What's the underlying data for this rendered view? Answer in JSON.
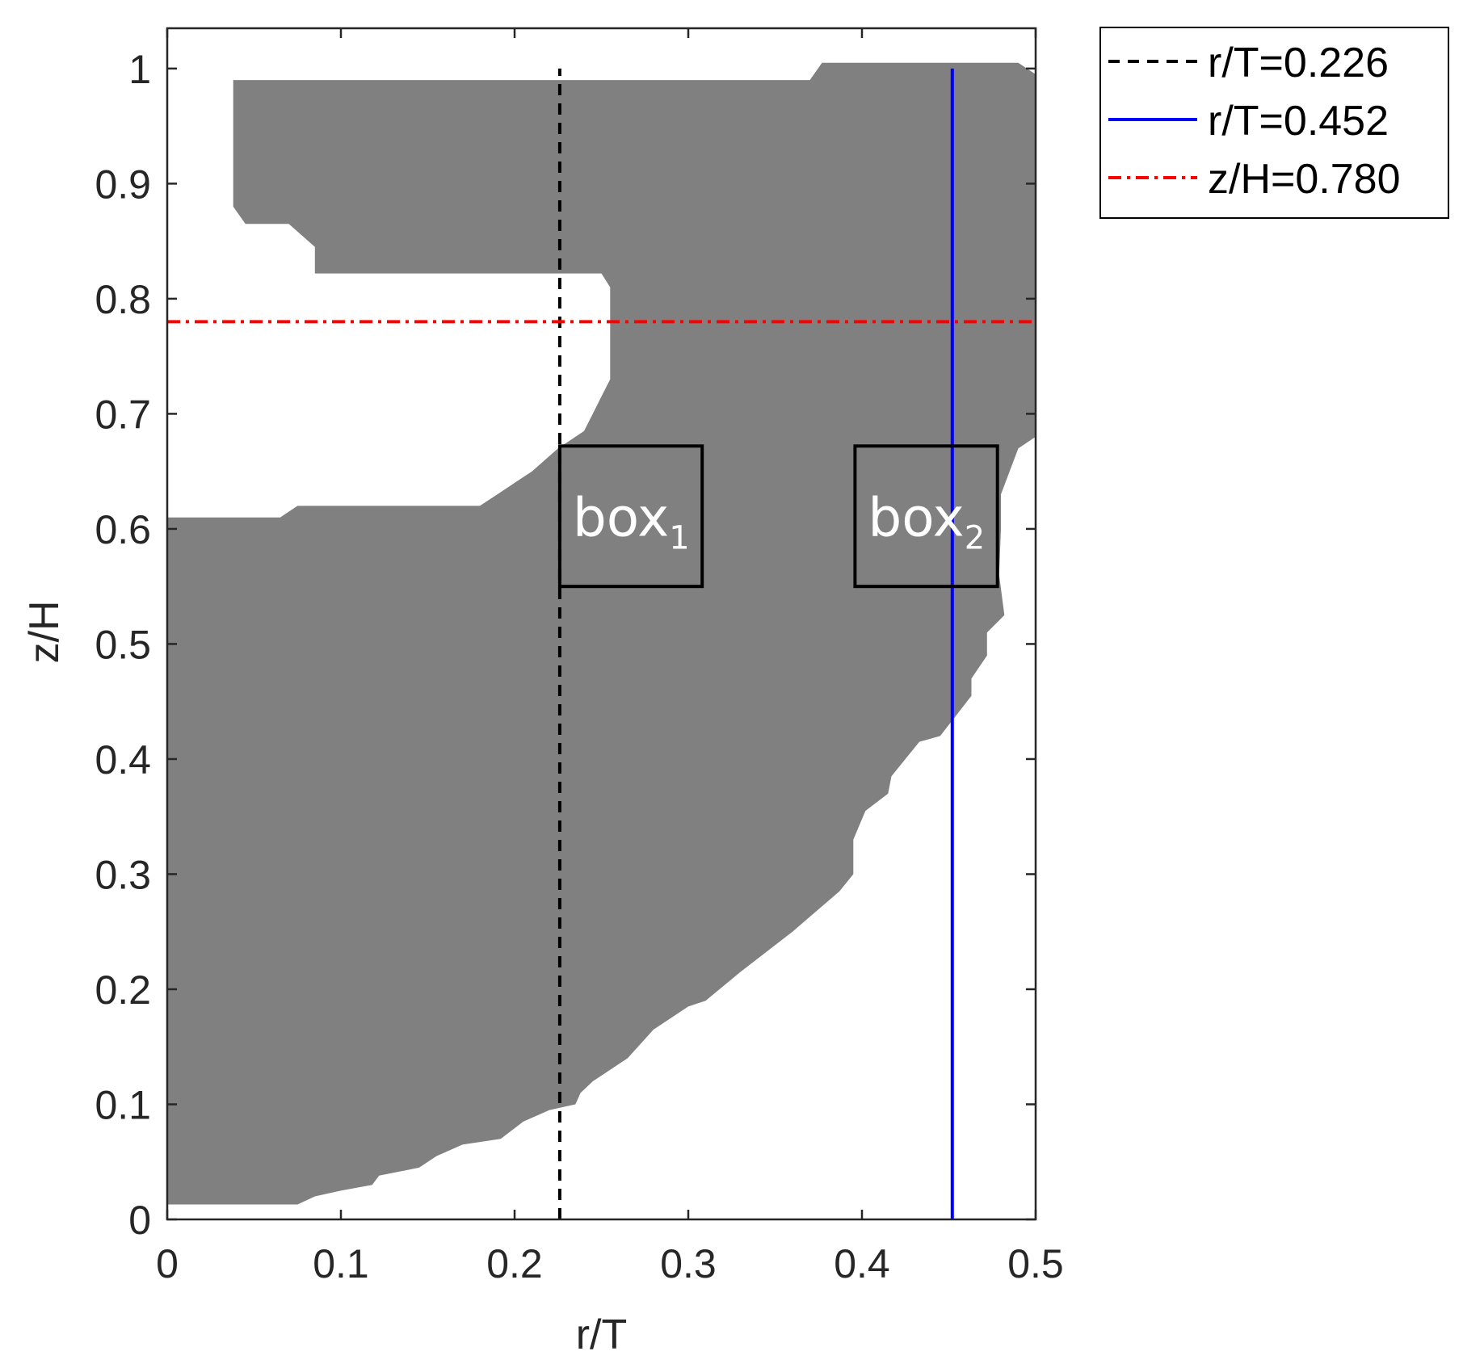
{
  "chart_data": {
    "type": "area",
    "xlabel": "r/T",
    "ylabel": "z/H",
    "xlim": [
      0,
      0.5
    ],
    "ylim": [
      0,
      1.035
    ],
    "xticks": [
      0,
      0.1,
      0.2,
      0.3,
      0.4,
      0.5
    ],
    "xtick_labels": [
      "0",
      "0.1",
      "0.2",
      "0.3",
      "0.4",
      "0.5"
    ],
    "yticks": [
      0,
      0.1,
      0.2,
      0.3,
      0.4,
      0.5,
      0.6,
      0.7,
      0.8,
      0.9,
      1.0
    ],
    "ytick_labels": [
      "0",
      "0.1",
      "0.2",
      "0.3",
      "0.4",
      "0.5",
      "0.6",
      "0.7",
      "0.8",
      "0.9",
      "1"
    ],
    "grid": false,
    "legend_position": "outside top-right",
    "region": {
      "color": "#808080",
      "outline": [
        [
          0.038,
          0.99
        ],
        [
          0.37,
          0.99
        ],
        [
          0.377,
          1.005
        ],
        [
          0.49,
          1.005
        ],
        [
          0.5,
          0.995
        ],
        [
          0.5,
          0.68
        ],
        [
          0.49,
          0.67
        ],
        [
          0.48,
          0.63
        ],
        [
          0.48,
          0.6
        ],
        [
          0.479,
          0.56
        ],
        [
          0.482,
          0.525
        ],
        [
          0.472,
          0.51
        ],
        [
          0.472,
          0.49
        ],
        [
          0.463,
          0.47
        ],
        [
          0.463,
          0.455
        ],
        [
          0.445,
          0.42
        ],
        [
          0.433,
          0.415
        ],
        [
          0.417,
          0.385
        ],
        [
          0.415,
          0.37
        ],
        [
          0.402,
          0.355
        ],
        [
          0.395,
          0.33
        ],
        [
          0.395,
          0.3
        ],
        [
          0.387,
          0.285
        ],
        [
          0.36,
          0.25
        ],
        [
          0.33,
          0.215
        ],
        [
          0.31,
          0.19
        ],
        [
          0.3,
          0.185
        ],
        [
          0.28,
          0.165
        ],
        [
          0.265,
          0.14
        ],
        [
          0.255,
          0.13
        ],
        [
          0.245,
          0.12
        ],
        [
          0.238,
          0.11
        ],
        [
          0.235,
          0.1
        ],
        [
          0.22,
          0.095
        ],
        [
          0.205,
          0.085
        ],
        [
          0.192,
          0.07
        ],
        [
          0.17,
          0.065
        ],
        [
          0.155,
          0.055
        ],
        [
          0.145,
          0.045
        ],
        [
          0.122,
          0.038
        ],
        [
          0.118,
          0.03
        ],
        [
          0.1,
          0.025
        ],
        [
          0.085,
          0.02
        ],
        [
          0.075,
          0.013
        ],
        [
          0,
          0.013
        ],
        [
          0,
          0.61
        ],
        [
          0.065,
          0.61
        ],
        [
          0.075,
          0.62
        ],
        [
          0.18,
          0.62
        ],
        [
          0.19,
          0.63
        ],
        [
          0.2,
          0.64
        ],
        [
          0.21,
          0.65
        ],
        [
          0.225,
          0.67
        ],
        [
          0.24,
          0.685
        ],
        [
          0.245,
          0.7
        ],
        [
          0.25,
          0.715
        ],
        [
          0.255,
          0.73
        ],
        [
          0.255,
          0.81
        ],
        [
          0.25,
          0.822
        ],
        [
          0.085,
          0.822
        ],
        [
          0.085,
          0.845
        ],
        [
          0.07,
          0.865
        ],
        [
          0.045,
          0.865
        ],
        [
          0.038,
          0.88
        ]
      ]
    },
    "lines": [
      {
        "name": "r/T=0.226",
        "orientation": "vertical",
        "value": 0.226,
        "from": 0,
        "to": 1,
        "color": "#000000",
        "style": "dashed"
      },
      {
        "name": "r/T=0.452",
        "orientation": "vertical",
        "value": 0.452,
        "from": 0,
        "to": 1,
        "color": "#0000ff",
        "style": "solid"
      },
      {
        "name": "z/H=0.780",
        "orientation": "horizontal",
        "value": 0.78,
        "from": 0,
        "to": 0.5,
        "color": "#ff0000",
        "style": "dashdot"
      }
    ],
    "annotations": [
      {
        "label": "box",
        "subscript": "1",
        "x": [
          0.226,
          0.308
        ],
        "y": [
          0.55,
          0.672
        ]
      },
      {
        "label": "box",
        "subscript": "2",
        "x": [
          0.396,
          0.478
        ],
        "y": [
          0.55,
          0.672
        ]
      }
    ]
  }
}
